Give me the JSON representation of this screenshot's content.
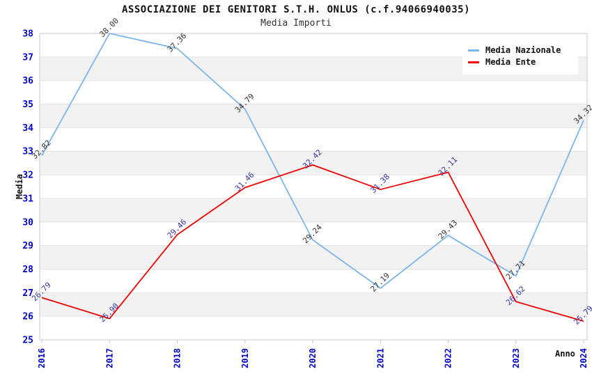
{
  "chart_data": {
    "type": "line",
    "title": "ASSOCIAZIONE DEI GENITORI S.T.H. ONLUS (c.f.94066940035)",
    "subtitle": "Media Importi",
    "xlabel": "Anno",
    "ylabel": "Media",
    "categories": [
      "2016",
      "2017",
      "2018",
      "2019",
      "2020",
      "2021",
      "2022",
      "2023",
      "2024"
    ],
    "series": [
      {
        "name": "Media Nazionale",
        "color": "#7cb5ec",
        "label_color": "#333333",
        "values": [
          32.82,
          38.0,
          37.36,
          34.79,
          29.24,
          27.19,
          29.43,
          27.71,
          34.32
        ]
      },
      {
        "name": "Media Ente",
        "color": "#ee0000",
        "label_color": "#3333aa",
        "values": [
          26.79,
          25.9,
          29.46,
          31.46,
          32.42,
          31.38,
          32.11,
          26.62,
          25.79
        ]
      }
    ],
    "ylim": [
      25,
      38
    ],
    "ytick_step": 1,
    "grid": true,
    "alternating_bands": true,
    "legend_position": "top-right",
    "axis_tick_color": "#0000cc",
    "band_color": "#f2f2f2",
    "gridline_color": "#e2e2e2",
    "border_color": "#c8c8c8",
    "label_decimals": 2
  }
}
